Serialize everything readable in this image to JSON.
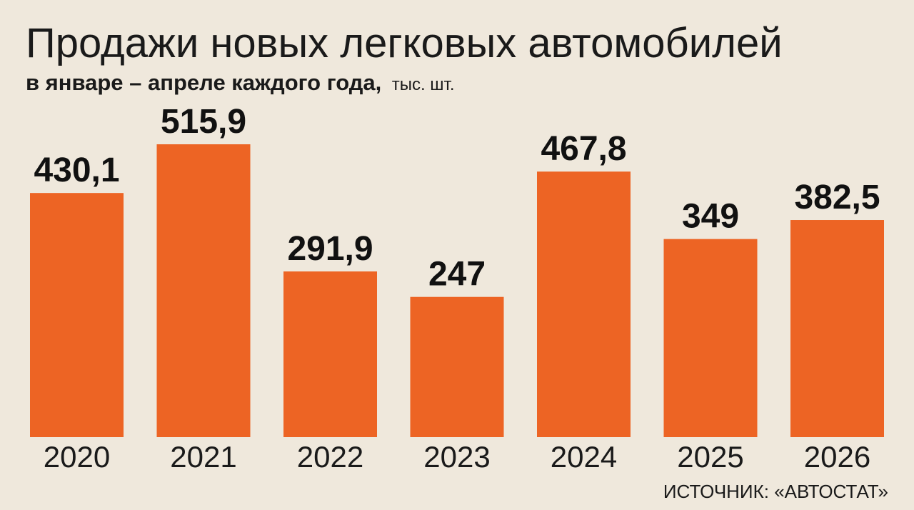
{
  "chart_data": {
    "type": "bar",
    "title": "Продажи новых легковых автомобилей",
    "subtitle": "в январе – апреле каждого года,",
    "unit": "тыс. шт.",
    "categories": [
      "2020",
      "2021",
      "2022",
      "2023",
      "2024",
      "2025",
      "2026"
    ],
    "values": [
      430.1,
      515.9,
      291.9,
      247,
      467.8,
      349,
      382.5
    ],
    "value_labels": [
      "430,1",
      "515,9",
      "291,9",
      "247",
      "467,8",
      "349",
      "382,5"
    ],
    "source": "ИСТОЧНИК: «АВТОСТАТ»",
    "bar_color": "#ed6424",
    "background_color": "#efe8dc",
    "grid": false,
    "ylim": [
      0,
      515.9
    ]
  }
}
